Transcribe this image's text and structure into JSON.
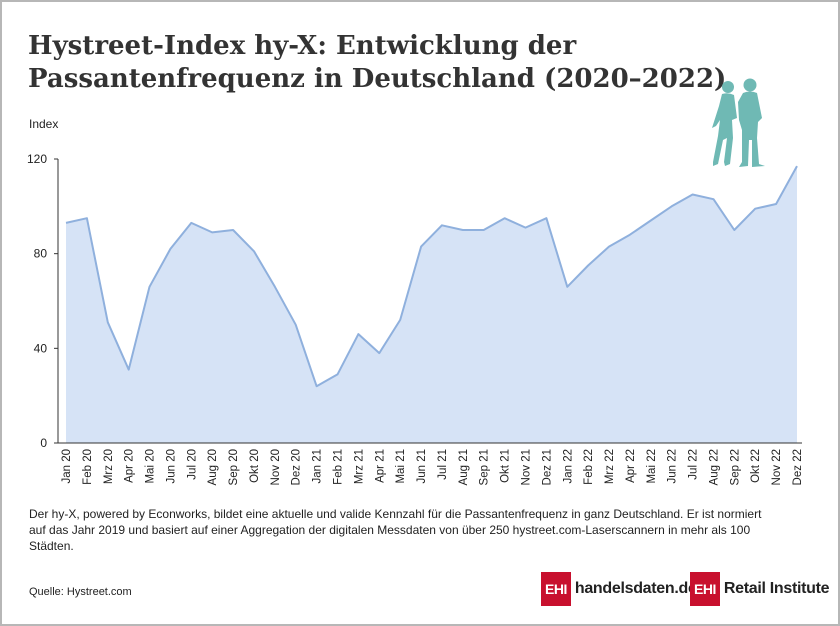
{
  "title": "Hystreet-Index hy-X: Entwicklung der Passantenfrequenz in Deutschland (2020–2022)",
  "note": "Der hy-X, powered by Econworks, bildet eine aktuelle und valide Kennzahl für die Passantenfrequenz in ganz Deutschland. Er ist normiert auf das Jahr 2019 und basiert auf einer Aggregation der digitalen Messdaten von über 250 hystreet.com-Laserscannern in mehr als 100 Städten.",
  "source": "Quelle: Hystreet.com",
  "logos": {
    "left_box": "EHI",
    "left_text": "handelsdaten.de",
    "right_box": "EHI",
    "right_text": "Retail Institute"
  },
  "colors": {
    "fill": "#d6e3f6",
    "line": "#8fb0dd",
    "logo_red": "#c8102e",
    "people": "#6fb9b4"
  },
  "icons": [
    "walking-people-icon"
  ],
  "chart_data": {
    "type": "area",
    "ylabel": "Index",
    "xlabel": "",
    "ylim": [
      0,
      120
    ],
    "yticks": [
      0,
      40,
      80,
      120
    ],
    "grid": false,
    "categories": [
      "Jan 20",
      "Feb 20",
      "Mrz 20",
      "Apr 20",
      "Mai 20",
      "Jun 20",
      "Jul 20",
      "Aug 20",
      "Sep 20",
      "Okt 20",
      "Nov 20",
      "Dez 20",
      "Jan 21",
      "Feb 21",
      "Mrz 21",
      "Apr 21",
      "Mai 21",
      "Jun 21",
      "Jul 21",
      "Aug 21",
      "Sep 21",
      "Okt 21",
      "Nov 21",
      "Dez 21",
      "Jan 22",
      "Feb 22",
      "Mrz 22",
      "Apr 22",
      "Mai 22",
      "Jun 22",
      "Jul 22",
      "Aug 22",
      "Sep 22",
      "Okt 22",
      "Nov 22",
      "Dez 22"
    ],
    "values": [
      93,
      95,
      51,
      31,
      66,
      82,
      93,
      89,
      90,
      81,
      66,
      50,
      24,
      29,
      46,
      38,
      52,
      83,
      92,
      90,
      90,
      95,
      91,
      95,
      66,
      75,
      83,
      88,
      94,
      100,
      105,
      103,
      90,
      99,
      101,
      117
    ]
  }
}
